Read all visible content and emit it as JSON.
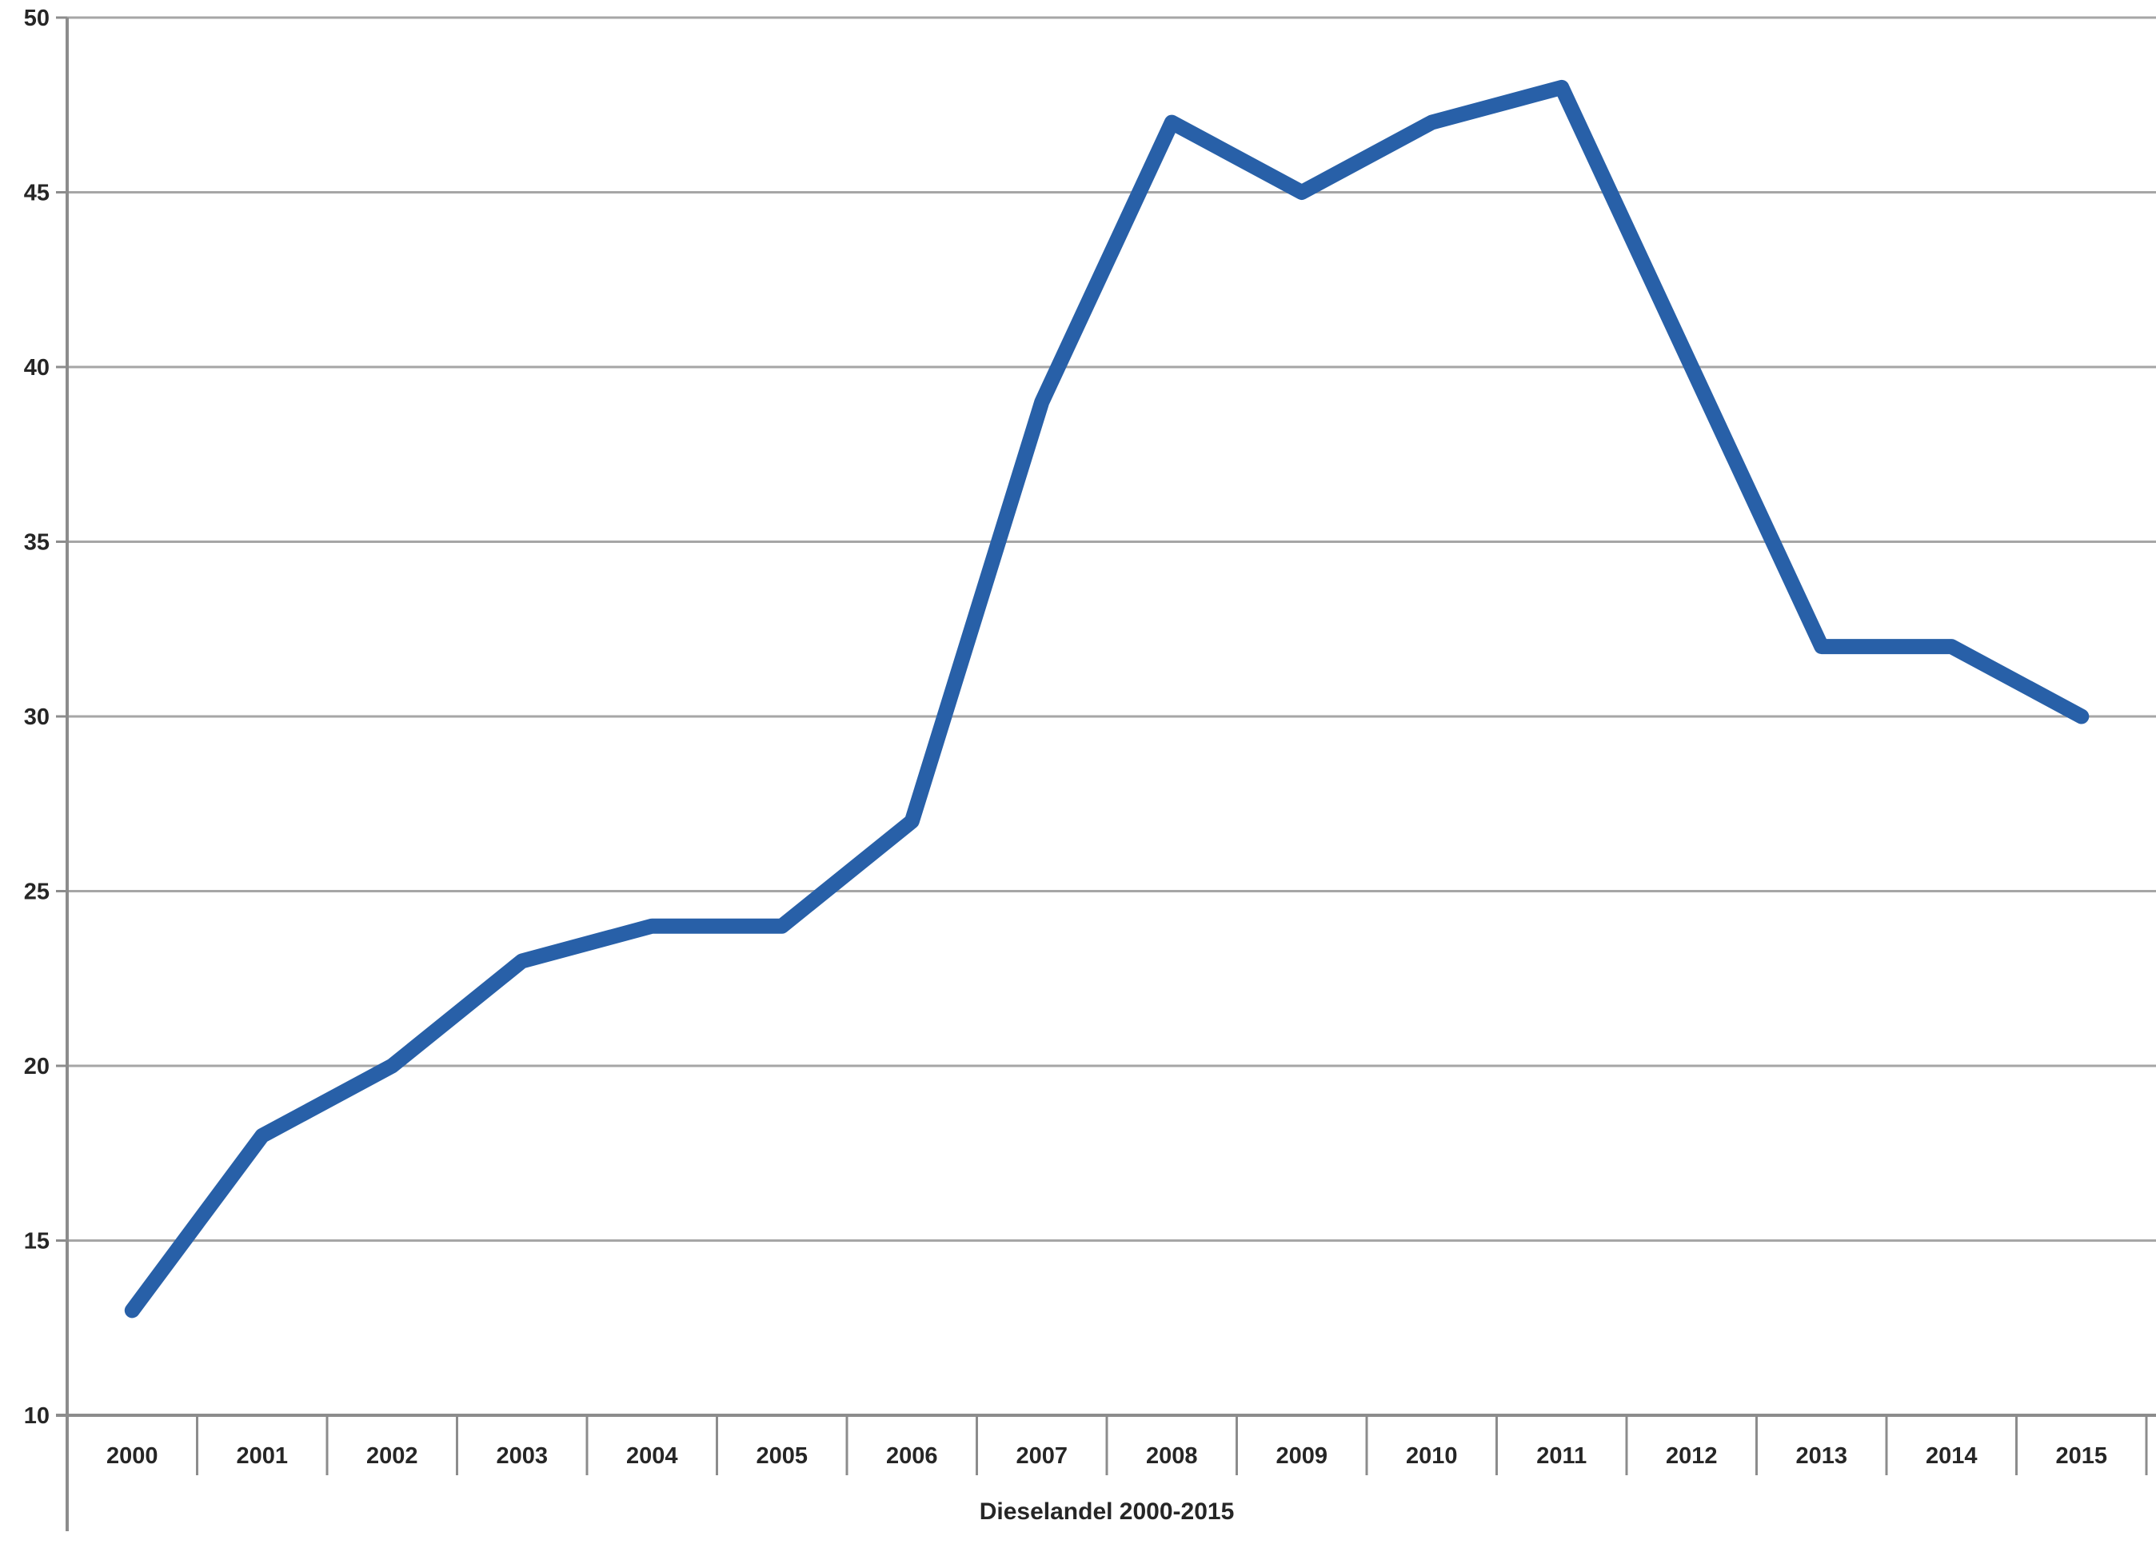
{
  "chart_data": {
    "type": "line",
    "title": "Dieselandel 2000-2015",
    "categories": [
      "2000",
      "2001",
      "2002",
      "2003",
      "2004",
      "2005",
      "2006",
      "2007",
      "2008",
      "2009",
      "2010",
      "2011",
      "2012",
      "2013",
      "2014",
      "2015"
    ],
    "values": [
      13,
      18,
      20,
      23,
      24,
      24,
      27,
      39,
      47,
      45,
      47,
      48,
      40,
      32,
      32,
      30
    ],
    "yticks": [
      10,
      15,
      20,
      25,
      30,
      35,
      40,
      45,
      50
    ],
    "ylim": [
      10,
      50
    ],
    "xlabel": "",
    "ylabel": "",
    "legend": "none",
    "grid": "horizontal",
    "colors": {
      "line": "#2860a8",
      "gridline": "#a6a6a6",
      "axis": "#8c8c8c",
      "label": "#262626",
      "background": "#ffffff"
    }
  }
}
